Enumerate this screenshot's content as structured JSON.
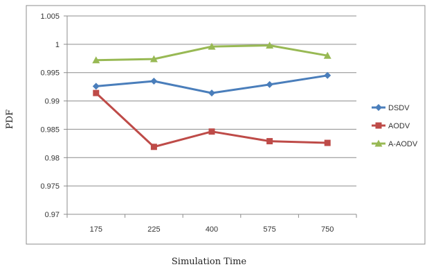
{
  "chart_data": {
    "type": "line",
    "title": "",
    "xlabel": "Simulation Time",
    "ylabel": "PDF",
    "categories": [
      "175",
      "225",
      "400",
      "575",
      "750"
    ],
    "ylim": [
      0.97,
      1.005
    ],
    "yticks": [
      "0.97",
      "0.975",
      "0.98",
      "0.985",
      "0.99",
      "0.995",
      "1",
      "1.005"
    ],
    "grid": "horizontal",
    "legend": "right",
    "series": [
      {
        "name": "DSDV",
        "color": "#4a7ebb",
        "marker": "diamond",
        "values": [
          0.9926,
          0.9935,
          0.9914,
          0.9929,
          0.9945
        ]
      },
      {
        "name": "AODV",
        "color": "#be4b48",
        "marker": "square",
        "values": [
          0.9914,
          0.9819,
          0.9846,
          0.9829,
          0.9826
        ]
      },
      {
        "name": "A-AODV",
        "color": "#98b954",
        "marker": "triangle",
        "values": [
          0.9972,
          0.9974,
          0.9996,
          0.9998,
          0.998
        ]
      }
    ]
  }
}
